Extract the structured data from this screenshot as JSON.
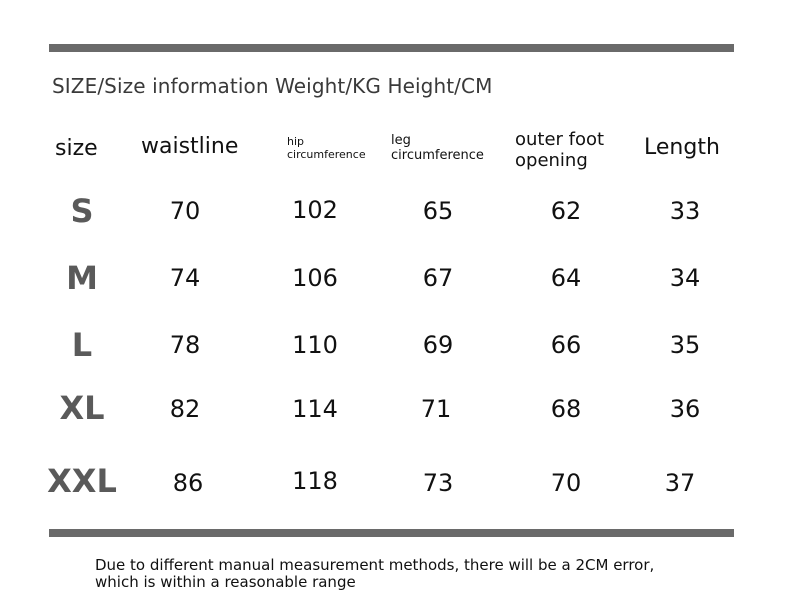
{
  "title": "SIZE/Size information Weight/KG Height/CM",
  "headers": {
    "size": "size",
    "waistline": "waistline",
    "hip_line1": "hip",
    "hip_line2": "circumference",
    "leg_line1": "leg",
    "leg_line2": "circumference",
    "outer_line1": "outer foot",
    "outer_line2": "opening",
    "length": "Length"
  },
  "rows": [
    {
      "size": "S",
      "waistline": "70",
      "hip": "102",
      "leg": "65",
      "outer": "62",
      "length": "33"
    },
    {
      "size": "M",
      "waistline": "74",
      "hip": "106",
      "leg": "67",
      "outer": "64",
      "length": "34"
    },
    {
      "size": "L",
      "waistline": "78",
      "hip": "110",
      "leg": "69",
      "outer": "66",
      "length": "35"
    },
    {
      "size": "XL",
      "waistline": "82",
      "hip": "114",
      "leg": "71",
      "outer": "68",
      "length": "36"
    },
    {
      "size": "XXL",
      "waistline": "86",
      "hip": "118",
      "leg": "73",
      "outer": "70",
      "length": "37"
    }
  ],
  "note_line1": "Due to different manual measurement methods, there will be a 2CM error,",
  "note_line2": "which is within a reasonable range"
}
